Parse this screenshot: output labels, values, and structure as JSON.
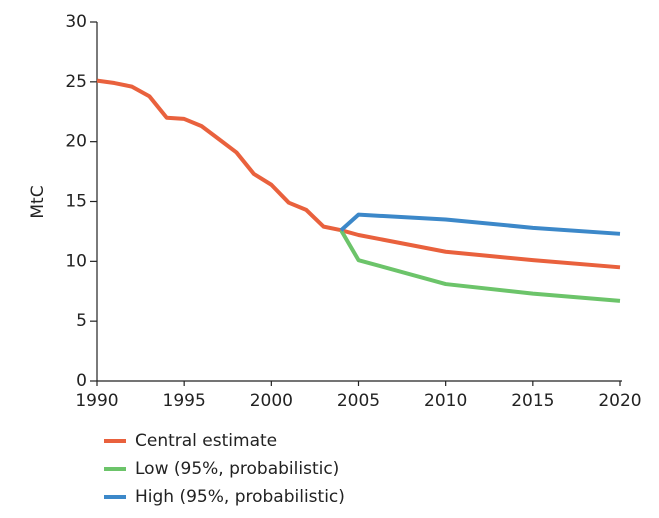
{
  "chart_data": {
    "type": "line",
    "y_label": "MtC",
    "x": [
      1990,
      1991,
      1992,
      1993,
      1994,
      1995,
      1996,
      1997,
      1998,
      1999,
      2000,
      2001,
      2002,
      2003,
      2004,
      2005,
      2010,
      2015,
      2020
    ],
    "series": [
      {
        "name": "Central estimate",
        "color": "#e9613d",
        "values": [
          25.1,
          24.9,
          24.6,
          23.8,
          22.0,
          21.9,
          21.3,
          20.2,
          19.1,
          17.3,
          16.4,
          14.9,
          14.3,
          12.9,
          12.6,
          12.2,
          10.8,
          10.1,
          9.5
        ]
      },
      {
        "name": "Low (95%, probabilistic)",
        "color": "#6cc46a",
        "values": [
          null,
          null,
          null,
          null,
          null,
          null,
          null,
          null,
          null,
          null,
          null,
          null,
          null,
          null,
          12.6,
          10.1,
          8.1,
          7.3,
          6.7
        ]
      },
      {
        "name": "High (95%, probabilistic)",
        "color": "#3c88c9",
        "values": [
          null,
          null,
          null,
          null,
          null,
          null,
          null,
          null,
          null,
          null,
          null,
          null,
          null,
          null,
          12.6,
          13.9,
          13.5,
          12.8,
          12.3
        ]
      }
    ],
    "xlim": [
      1990,
      2020
    ],
    "xticks": [
      1990,
      1995,
      2000,
      2005,
      2010,
      2015,
      2020
    ],
    "ylim": [
      0,
      30
    ],
    "yticks": [
      0,
      5,
      10,
      15,
      20,
      25,
      30
    ],
    "grid": false,
    "legend": "bottom"
  }
}
